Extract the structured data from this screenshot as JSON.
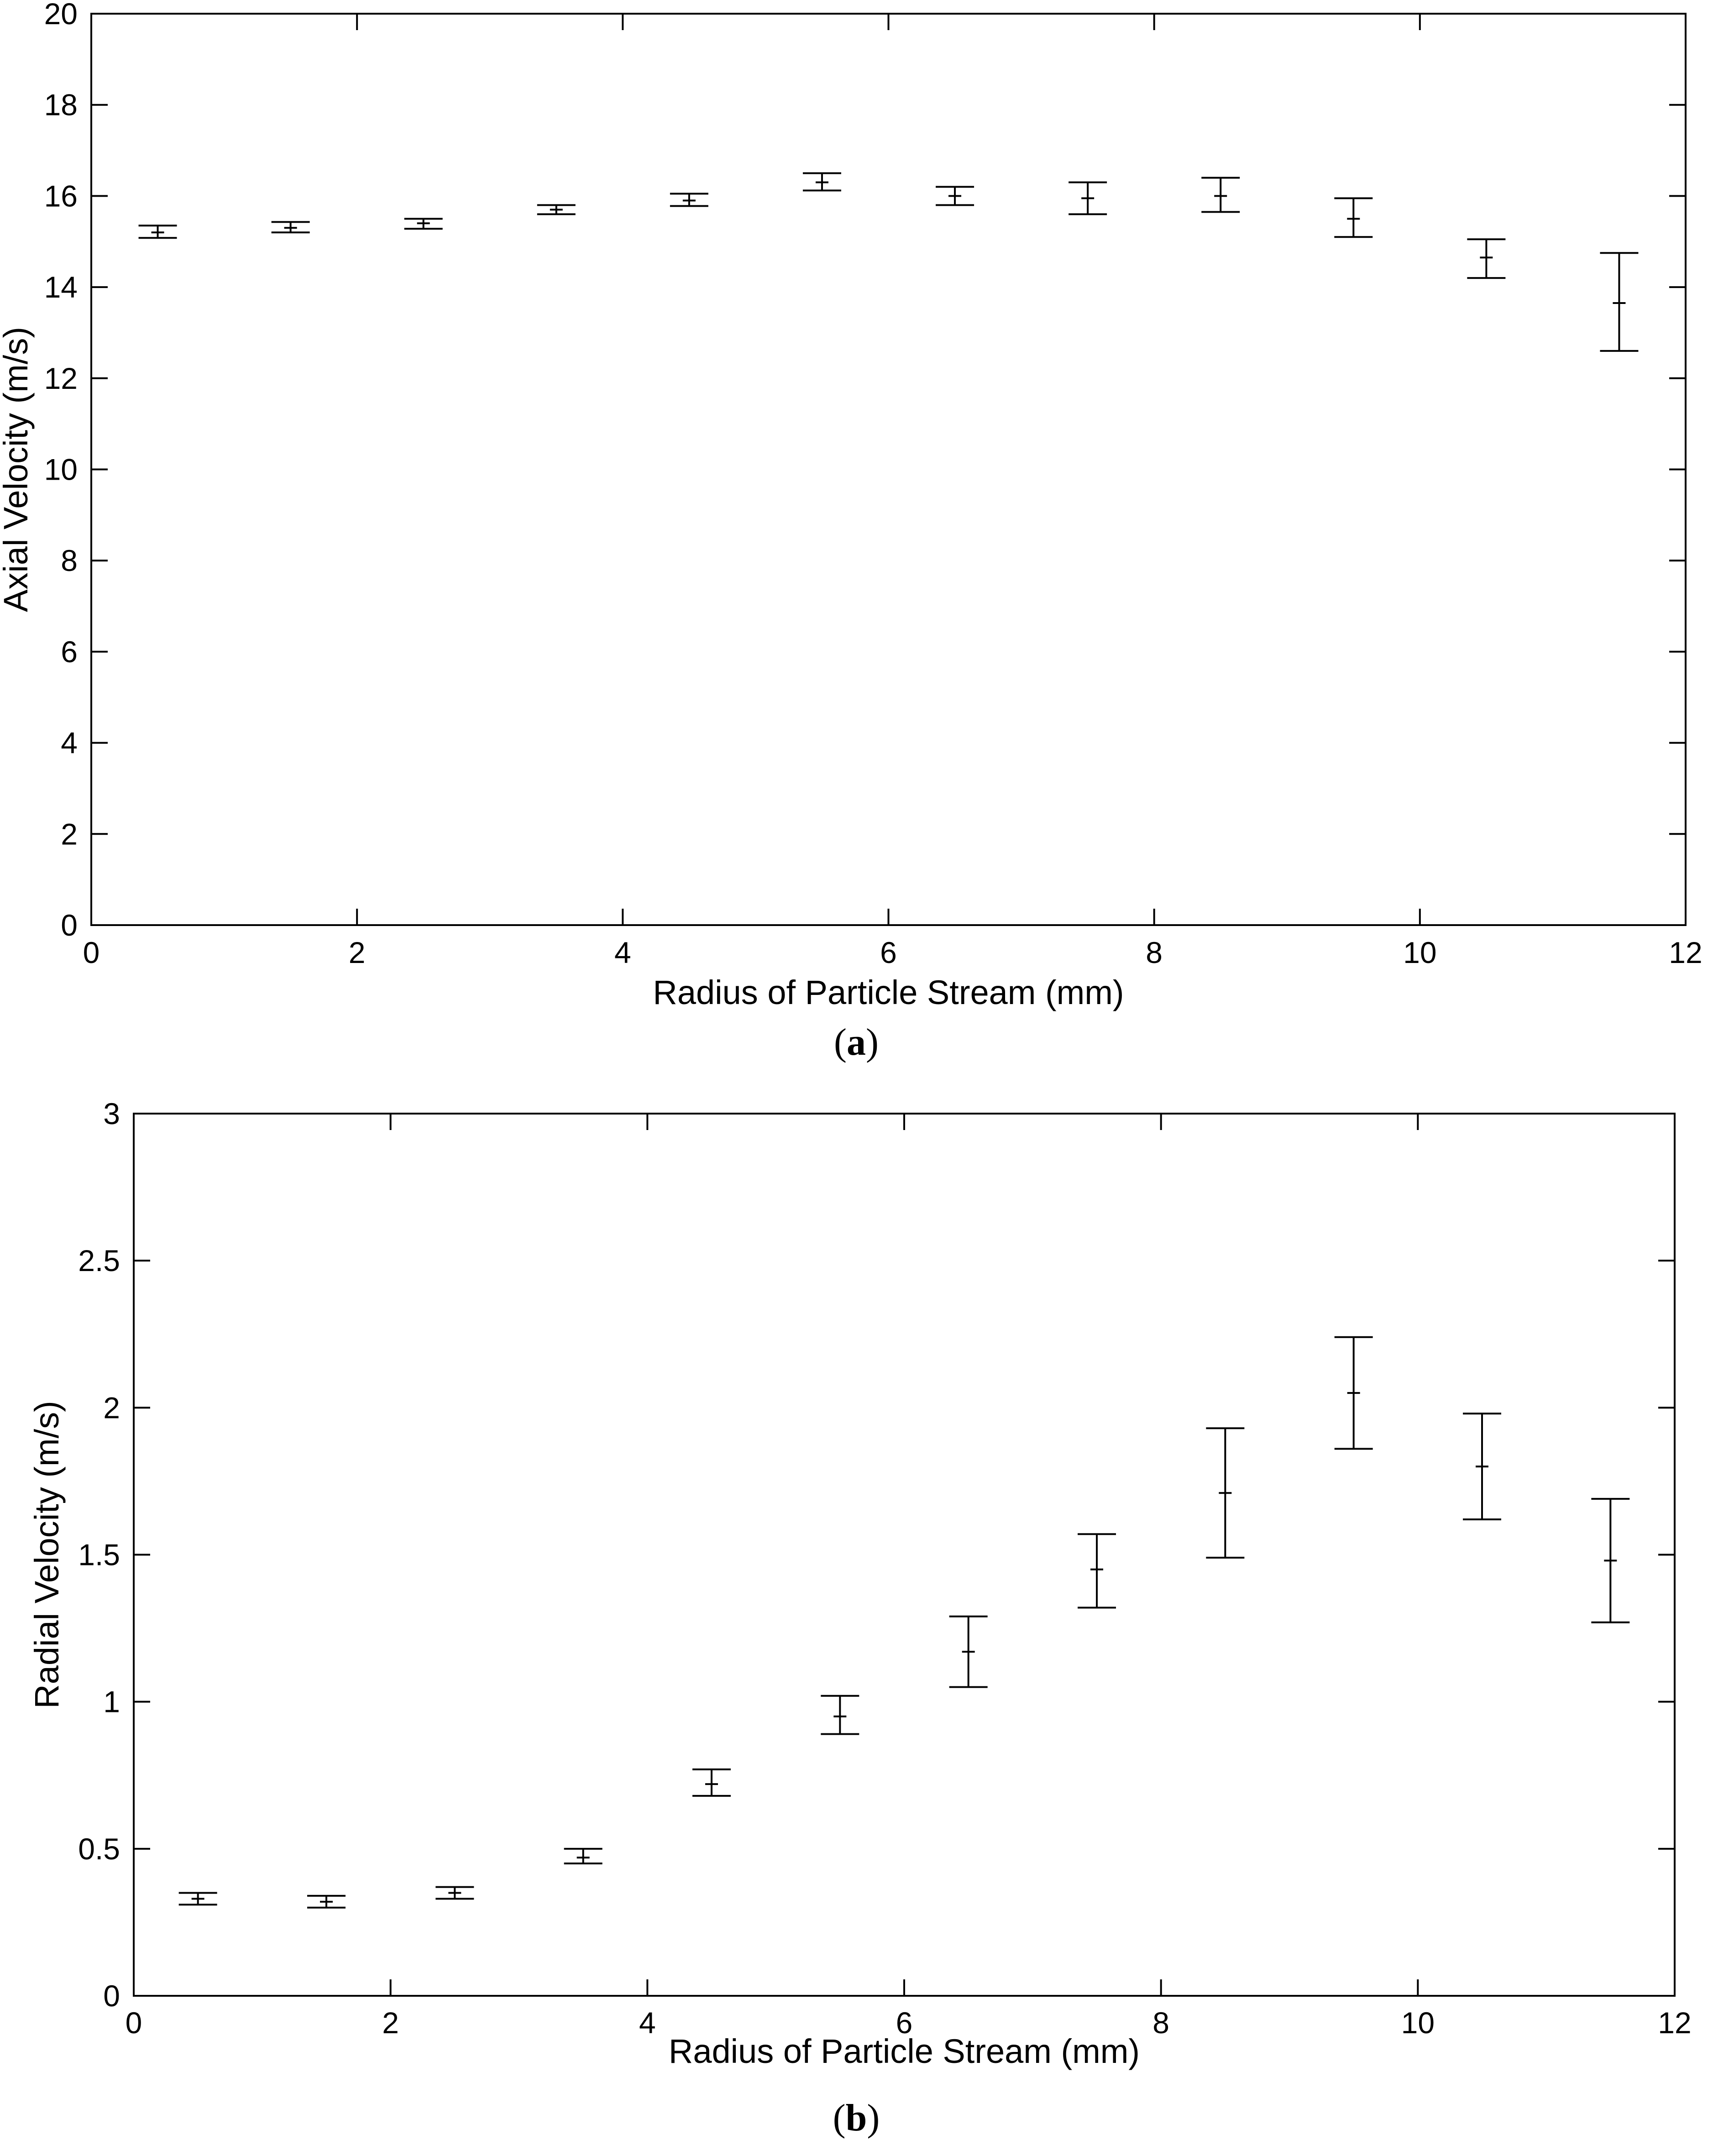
{
  "chart_data": [
    {
      "type": "scatter",
      "panel": "(a)",
      "panel_letter": "a",
      "title": "",
      "xlabel": "Radius of Particle Stream (mm)",
      "ylabel": "Axial Velocity (m/s)",
      "xlim": [
        0,
        12
      ],
      "ylim": [
        0,
        20
      ],
      "xticks": [
        0,
        2,
        4,
        6,
        8,
        10,
        12
      ],
      "yticks": [
        0,
        2,
        4,
        6,
        8,
        10,
        12,
        14,
        16,
        18,
        20
      ],
      "grid": false,
      "legend": "none",
      "error_bars": true,
      "series": [
        {
          "x": [
            0.5,
            1.5,
            2.5,
            3.5,
            4.5,
            5.5,
            6.5,
            7.5,
            8.5,
            9.5,
            10.5,
            11.5
          ],
          "y": [
            15.2,
            15.3,
            15.4,
            15.7,
            15.9,
            16.3,
            16.0,
            15.95,
            16.0,
            15.5,
            14.65,
            13.65
          ],
          "y_low": [
            15.08,
            15.2,
            15.28,
            15.6,
            15.78,
            16.12,
            15.8,
            15.6,
            15.65,
            15.1,
            14.2,
            12.6
          ],
          "y_high": [
            15.35,
            15.43,
            15.5,
            15.8,
            16.05,
            16.5,
            16.2,
            16.3,
            16.4,
            15.95,
            15.05,
            14.75
          ]
        }
      ]
    },
    {
      "type": "scatter",
      "panel": "(b)",
      "panel_letter": "b",
      "title": "",
      "xlabel": "Radius of Particle Stream (mm)",
      "ylabel": "Radial Velocity (m/s)",
      "xlim": [
        0,
        12
      ],
      "ylim": [
        0,
        3
      ],
      "xticks": [
        0,
        2,
        4,
        6,
        8,
        10,
        12
      ],
      "yticks": [
        0,
        0.5,
        1,
        1.5,
        2,
        2.5,
        3
      ],
      "grid": false,
      "legend": "none",
      "error_bars": true,
      "series": [
        {
          "x": [
            0.5,
            1.5,
            2.5,
            3.5,
            4.5,
            5.5,
            6.5,
            7.5,
            8.5,
            9.5,
            10.5,
            11.5
          ],
          "y": [
            0.33,
            0.32,
            0.35,
            0.47,
            0.72,
            0.95,
            1.17,
            1.45,
            1.71,
            2.05,
            1.8,
            1.48
          ],
          "y_low": [
            0.31,
            0.3,
            0.33,
            0.45,
            0.68,
            0.89,
            1.05,
            1.32,
            1.49,
            1.86,
            1.62,
            1.27
          ],
          "y_high": [
            0.35,
            0.34,
            0.37,
            0.5,
            0.77,
            1.02,
            1.29,
            1.57,
            1.93,
            2.24,
            1.98,
            1.69
          ]
        }
      ]
    }
  ]
}
